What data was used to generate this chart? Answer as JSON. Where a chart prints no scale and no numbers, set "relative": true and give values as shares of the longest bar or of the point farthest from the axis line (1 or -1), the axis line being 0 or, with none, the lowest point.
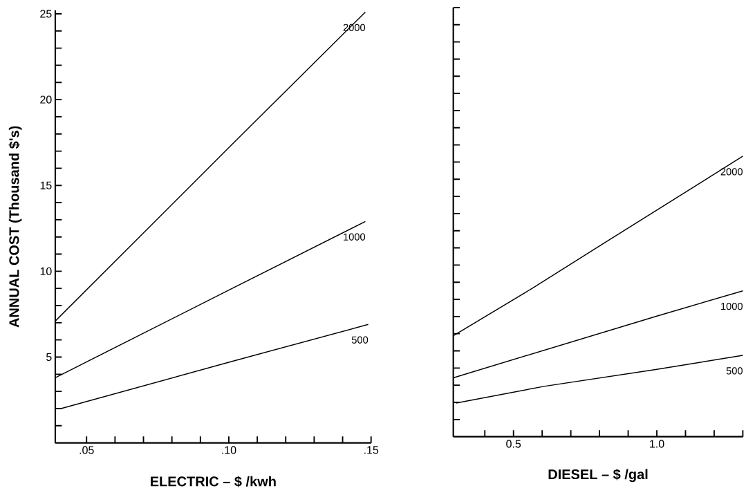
{
  "chart_data": [
    {
      "type": "line",
      "xlabel": "ELECTRIC – $ /kwh",
      "ylabel": "ANNUAL COST (Thousand $'s)",
      "marker": "none",
      "line_style": "solid",
      "xlim": [
        0.039,
        0.15
      ],
      "ylim": [
        0,
        25.2
      ],
      "xticks": [
        {
          "value": 0.05,
          "label": ".05"
        },
        {
          "value": 0.06,
          "label": null
        },
        {
          "value": 0.07,
          "label": null
        },
        {
          "value": 0.08,
          "label": null
        },
        {
          "value": 0.09,
          "label": null
        },
        {
          "value": 0.1,
          "label": ".10"
        },
        {
          "value": 0.11,
          "label": null
        },
        {
          "value": 0.12,
          "label": null
        },
        {
          "value": 0.13,
          "label": null
        },
        {
          "value": 0.14,
          "label": null
        },
        {
          "value": 0.15,
          "label": ".15"
        }
      ],
      "yticks": [
        {
          "value": 1,
          "label": null
        },
        {
          "value": 2,
          "label": null
        },
        {
          "value": 3,
          "label": null
        },
        {
          "value": 4,
          "label": null
        },
        5,
        {
          "value": 6,
          "label": null
        },
        {
          "value": 7,
          "label": null
        },
        {
          "value": 8,
          "label": null
        },
        {
          "value": 9,
          "label": null
        },
        10,
        {
          "value": 11,
          "label": null
        },
        {
          "value": 12,
          "label": null
        },
        {
          "value": 13,
          "label": null
        },
        {
          "value": 14,
          "label": null
        },
        15,
        {
          "value": 16,
          "label": null
        },
        {
          "value": 17,
          "label": null
        },
        {
          "value": 18,
          "label": null
        },
        {
          "value": 19,
          "label": null
        },
        20,
        {
          "value": 21,
          "label": null
        },
        {
          "value": 22,
          "label": null
        },
        {
          "value": 23,
          "label": null
        },
        {
          "value": 24,
          "label": null
        },
        25
      ],
      "series": [
        {
          "name": "2000",
          "color": "#000000",
          "x": [
            0.039,
            0.1,
            0.148
          ],
          "values": [
            7.1,
            17.2,
            25.1
          ]
        },
        {
          "name": "1000",
          "color": "#000000",
          "x": [
            0.039,
            0.1,
            0.148
          ],
          "values": [
            3.8,
            8.9,
            12.9
          ]
        },
        {
          "name": "500",
          "color": "#000000",
          "x": [
            0.041,
            0.1,
            0.149
          ],
          "values": [
            2.0,
            4.7,
            6.9
          ]
        }
      ]
    },
    {
      "type": "line",
      "xlabel": "DIESEL – $ /gal",
      "marker": "none",
      "line_style": "solid",
      "relative": true,
      "xlim": [
        0.29,
        1.3
      ],
      "xticks": [
        {
          "value": 0.4,
          "label": null
        },
        {
          "value": 0.5,
          "label": "0.5"
        },
        {
          "value": 0.6,
          "label": null
        },
        {
          "value": 0.7,
          "label": null
        },
        {
          "value": 0.8,
          "label": null
        },
        {
          "value": 0.9,
          "label": null
        },
        {
          "value": 1.0,
          "label": "1.0"
        },
        {
          "value": 1.1,
          "label": null
        },
        {
          "value": 1.2,
          "label": null
        },
        {
          "value": 1.3,
          "label": null
        }
      ],
      "series": [
        {
          "name": "2000",
          "color": "#000000",
          "x": [
            0.29,
            0.567,
            0.816,
            1.3
          ],
          "values": [
            0.36,
            0.53,
            0.69,
            1
          ]
        },
        {
          "name": "1000",
          "color": "#000000",
          "x": [
            0.29,
            1.0,
            1.3
          ],
          "values": [
            0.21,
            0.43,
            0.52
          ]
        },
        {
          "name": "500",
          "color": "#000000",
          "x": [
            0.3,
            0.61,
            1.0,
            1.3
          ],
          "values": [
            0.12,
            0.18,
            0.24,
            0.29
          ]
        }
      ]
    }
  ]
}
